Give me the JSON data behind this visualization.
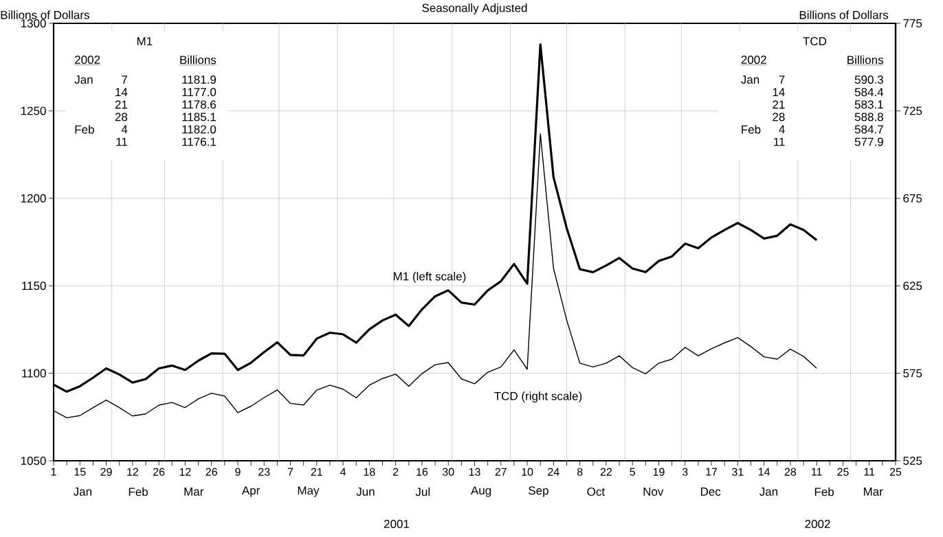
{
  "chart_data": {
    "type": "line",
    "title": "Seasonally Adjusted",
    "ylabel": "Billions of Dollars",
    "y2label": "Billions of Dollars",
    "x": [
      "2001-01-01",
      "2001-01-08",
      "2001-01-15",
      "2001-01-22",
      "2001-01-29",
      "2001-02-05",
      "2001-02-12",
      "2001-02-19",
      "2001-02-26",
      "2001-03-05",
      "2001-03-12",
      "2001-03-19",
      "2001-03-26",
      "2001-04-02",
      "2001-04-09",
      "2001-04-16",
      "2001-04-23",
      "2001-04-30",
      "2001-05-07",
      "2001-05-14",
      "2001-05-21",
      "2001-05-28",
      "2001-06-04",
      "2001-06-11",
      "2001-06-18",
      "2001-06-25",
      "2001-07-02",
      "2001-07-09",
      "2001-07-16",
      "2001-07-23",
      "2001-07-30",
      "2001-08-06",
      "2001-08-13",
      "2001-08-20",
      "2001-08-27",
      "2001-09-03",
      "2001-09-10",
      "2001-09-17",
      "2001-09-24",
      "2001-10-01",
      "2001-10-08",
      "2001-10-15",
      "2001-10-22",
      "2001-10-29",
      "2001-11-05",
      "2001-11-12",
      "2001-11-19",
      "2001-11-26",
      "2001-12-03",
      "2001-12-10",
      "2001-12-17",
      "2001-12-24",
      "2001-12-31",
      "2002-01-07",
      "2002-01-14",
      "2002-01-21",
      "2002-01-28",
      "2002-02-04",
      "2002-02-11"
    ],
    "xlim": [
      "2001-01-01",
      "2002-03-25"
    ],
    "xticks": [
      {
        "value": "2001-01-01",
        "label": "1"
      },
      {
        "value": "2001-01-08",
        "label": null
      },
      {
        "value": "2001-01-15",
        "label": "15"
      },
      {
        "value": "2001-01-22",
        "label": null
      },
      {
        "value": "2001-01-29",
        "label": "29"
      },
      {
        "value": "2001-02-05",
        "label": null
      },
      {
        "value": "2001-02-12",
        "label": "12"
      },
      {
        "value": "2001-02-19",
        "label": null
      },
      {
        "value": "2001-02-26",
        "label": "26"
      },
      {
        "value": "2001-03-05",
        "label": null
      },
      {
        "value": "2001-03-12",
        "label": "12"
      },
      {
        "value": "2001-03-19",
        "label": null
      },
      {
        "value": "2001-03-26",
        "label": "26"
      },
      {
        "value": "2001-04-02",
        "label": null
      },
      {
        "value": "2001-04-09",
        "label": "9"
      },
      {
        "value": "2001-04-16",
        "label": null
      },
      {
        "value": "2001-04-23",
        "label": "23"
      },
      {
        "value": "2001-04-30",
        "label": null
      },
      {
        "value": "2001-05-07",
        "label": "7"
      },
      {
        "value": "2001-05-14",
        "label": null
      },
      {
        "value": "2001-05-21",
        "label": "21"
      },
      {
        "value": "2001-05-28",
        "label": null
      },
      {
        "value": "2001-06-04",
        "label": "4"
      },
      {
        "value": "2001-06-11",
        "label": null
      },
      {
        "value": "2001-06-18",
        "label": "18"
      },
      {
        "value": "2001-06-25",
        "label": null
      },
      {
        "value": "2001-07-02",
        "label": "2"
      },
      {
        "value": "2001-07-09",
        "label": null
      },
      {
        "value": "2001-07-16",
        "label": "16"
      },
      {
        "value": "2001-07-23",
        "label": null
      },
      {
        "value": "2001-07-30",
        "label": "30"
      },
      {
        "value": "2001-08-06",
        "label": null
      },
      {
        "value": "2001-08-13",
        "label": "13"
      },
      {
        "value": "2001-08-20",
        "label": null
      },
      {
        "value": "2001-08-27",
        "label": "27"
      },
      {
        "value": "2001-09-03",
        "label": null
      },
      {
        "value": "2001-09-10",
        "label": "10"
      },
      {
        "value": "2001-09-17",
        "label": null
      },
      {
        "value": "2001-09-24",
        "label": "24"
      },
      {
        "value": "2001-10-01",
        "label": null
      },
      {
        "value": "2001-10-08",
        "label": "8"
      },
      {
        "value": "2001-10-15",
        "label": null
      },
      {
        "value": "2001-10-22",
        "label": "22"
      },
      {
        "value": "2001-10-29",
        "label": null
      },
      {
        "value": "2001-11-05",
        "label": "5"
      },
      {
        "value": "2001-11-12",
        "label": null
      },
      {
        "value": "2001-11-19",
        "label": "19"
      },
      {
        "value": "2001-11-26",
        "label": null
      },
      {
        "value": "2001-12-03",
        "label": "3"
      },
      {
        "value": "2001-12-10",
        "label": null
      },
      {
        "value": "2001-12-17",
        "label": "17"
      },
      {
        "value": "2001-12-24",
        "label": null
      },
      {
        "value": "2001-12-31",
        "label": "31"
      },
      {
        "value": "2002-01-07",
        "label": null
      },
      {
        "value": "2002-01-14",
        "label": "14"
      },
      {
        "value": "2002-01-21",
        "label": null
      },
      {
        "value": "2002-01-28",
        "label": "28"
      },
      {
        "value": "2002-02-04",
        "label": null
      },
      {
        "value": "2002-02-11",
        "label": "11"
      },
      {
        "value": "2002-02-18",
        "label": null
      },
      {
        "value": "2002-02-25",
        "label": "25"
      },
      {
        "value": "2002-03-04",
        "label": null
      },
      {
        "value": "2002-03-11",
        "label": "11"
      },
      {
        "value": "2002-03-18",
        "label": null
      },
      {
        "value": "2002-03-25",
        "label": "25"
      }
    ],
    "ylim": [
      1050,
      1300
    ],
    "yticks": [
      1050,
      1100,
      1150,
      1200,
      1250,
      1300
    ],
    "y2lim": [
      525,
      775
    ],
    "y2ticks": [
      525,
      575,
      625,
      675,
      725,
      775
    ],
    "grid": true,
    "series": [
      {
        "name": "M1 (left scale)",
        "color": "#000000",
        "values": [
          1093.5,
          1089.5,
          1092.6,
          1097.5,
          1102.8,
          1099.3,
          1094.7,
          1096.7,
          1102.8,
          1104.4,
          1101.9,
          1107.2,
          1111.4,
          1111.2,
          1101.9,
          1106,
          1112.1,
          1117.7,
          1110.5,
          1110.2,
          1119.8,
          1123.2,
          1122.3,
          1117.5,
          1125.1,
          1130.2,
          1133.5,
          1127,
          1136.5,
          1144,
          1147.4,
          1140.4,
          1139.3,
          1147.4,
          1152.6,
          1162.5,
          1151.2,
          1288,
          1212,
          1183,
          1159.5,
          1157.8,
          1161.6,
          1165.9,
          1159.9,
          1157.8,
          1164.2,
          1166.8,
          1174.1,
          1171.5,
          1177.6,
          1181.9,
          1185.9,
          1181.9,
          1177.0,
          1178.6,
          1185.1,
          1182.0,
          1176.1
        ]
      },
      {
        "name": "TCD (right scale)",
        "color": "#000000",
        "axis": "y2",
        "values": [
          553.6,
          549.6,
          550.8,
          555.4,
          559.7,
          555.4,
          550.6,
          551.8,
          556.8,
          558.3,
          555.4,
          560.4,
          563.6,
          562,
          552.5,
          556.2,
          561.1,
          565.5,
          557.8,
          556.9,
          565.4,
          568.2,
          565.9,
          561,
          568.2,
          572,
          574.5,
          567.6,
          574.8,
          579.9,
          581.1,
          571.8,
          569,
          575.6,
          578.6,
          588.4,
          577.3,
          711.8,
          634.9,
          605.4,
          580.8,
          578.6,
          580.8,
          585,
          578.2,
          574.7,
          580.8,
          583.1,
          589.8,
          585,
          589,
          592.4,
          595.4,
          590.3,
          584.4,
          583.1,
          588.8,
          584.7,
          577.9
        ]
      }
    ],
    "annotations": [
      "M1",
      "2002",
      "Billions",
      "Jan",
      "7",
      "1181.9",
      "14",
      "1177.0",
      "21",
      "1178.6",
      "28",
      "1185.1",
      "Feb",
      "4",
      "1182.0",
      "11",
      "1176.1",
      "TCD",
      "2002",
      "Billions",
      "Jan",
      "7",
      "590.3",
      "14",
      "584.4",
      "21",
      "583.1",
      "28",
      "588.8",
      "Feb",
      "4",
      "584.7",
      "11",
      "577.9",
      "Jan",
      "Feb",
      "Mar",
      "Apr",
      "May",
      "Jun",
      "Jul",
      "Aug",
      "Sep",
      "Oct",
      "Nov",
      "Dec",
      "Jan",
      "Feb",
      "Mar",
      "2001",
      "2002"
    ]
  }
}
